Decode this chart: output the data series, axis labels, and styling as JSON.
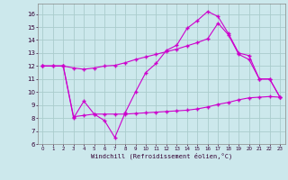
{
  "xlabel": "Windchill (Refroidissement éolien,°C)",
  "bg_color": "#cce8ec",
  "grid_color": "#aacccc",
  "line_color": "#cc00cc",
  "xlim": [
    -0.5,
    23.5
  ],
  "ylim": [
    6,
    16.8
  ],
  "yticks": [
    6,
    7,
    8,
    9,
    10,
    11,
    12,
    13,
    14,
    15,
    16
  ],
  "xticks": [
    0,
    1,
    2,
    3,
    4,
    5,
    6,
    7,
    8,
    9,
    10,
    11,
    12,
    13,
    14,
    15,
    16,
    17,
    18,
    19,
    20,
    21,
    22,
    23
  ],
  "line1_x": [
    0,
    1,
    2,
    3,
    4,
    5,
    6,
    7,
    8,
    9,
    10,
    11,
    12,
    13,
    14,
    15,
    16,
    17,
    18,
    19,
    20,
    21,
    22,
    23
  ],
  "line1_y": [
    12,
    12,
    12,
    11.85,
    11.75,
    11.85,
    12.0,
    12.05,
    12.25,
    12.5,
    12.7,
    12.9,
    13.1,
    13.3,
    13.55,
    13.8,
    14.1,
    15.3,
    14.4,
    12.9,
    12.5,
    11.0,
    11.0,
    9.6
  ],
  "line2_x": [
    0,
    1,
    2,
    3,
    4,
    5,
    6,
    7,
    8,
    9,
    10,
    11,
    12,
    13,
    14,
    15,
    16,
    17,
    18,
    19,
    20,
    21,
    22,
    23
  ],
  "line2_y": [
    12,
    12,
    12,
    8.0,
    9.3,
    8.3,
    7.8,
    6.5,
    8.4,
    10.0,
    11.5,
    12.2,
    13.2,
    13.6,
    14.9,
    15.5,
    16.2,
    15.8,
    14.5,
    13.0,
    12.8,
    11.0,
    11.0,
    9.6
  ],
  "line3_x": [
    0,
    2,
    3,
    4,
    5,
    6,
    7,
    8,
    9,
    10,
    11,
    12,
    13,
    14,
    15,
    16,
    17,
    18,
    19,
    20,
    21,
    22,
    23
  ],
  "line3_y": [
    12,
    12,
    8.1,
    8.2,
    8.3,
    8.3,
    8.3,
    8.3,
    8.35,
    8.4,
    8.45,
    8.5,
    8.55,
    8.6,
    8.7,
    8.85,
    9.05,
    9.2,
    9.4,
    9.55,
    9.6,
    9.65,
    9.6
  ]
}
